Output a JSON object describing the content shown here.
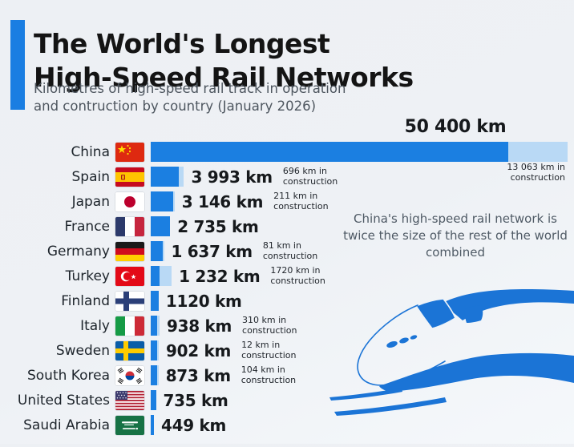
{
  "header": {
    "title": "The World's Longest High-Speed Rail Networks",
    "title_line1": "The World's Longest",
    "title_line2": "High-Speed Rail Networks",
    "subtitle": "Kilometres of high-speed rail track in operation and contruction by country (January 2026)",
    "subtitle_line1": "Kilometres of high-speed rail track in operation",
    "subtitle_line2": "and contruction by country (January 2026)"
  },
  "annotation": "China's high-speed rail network is twice the size of the rest of the world combined",
  "colors": {
    "accent": "#1a7ee2",
    "bar_operation": "#1b7fe1",
    "bar_construction": "#b9d9f5",
    "background": "#eef1f5",
    "train_blue": "#1b74d6"
  },
  "chart_data": {
    "type": "bar",
    "orientation": "horizontal",
    "unit": "km",
    "title": "The World's Longest High-Speed Rail Networks",
    "xlabel": "",
    "ylabel": "",
    "legend": [
      "in operation",
      "in construction"
    ],
    "categories": [
      "China",
      "Spain",
      "Japan",
      "France",
      "Germany",
      "Turkey",
      "Finland",
      "Italy",
      "Sweden",
      "South Korea",
      "United States",
      "Saudi Arabia"
    ],
    "series": [
      {
        "name": "in operation",
        "values": [
          50400,
          3993,
          3146,
          2735,
          1637,
          1232,
          1120,
          938,
          902,
          873,
          735,
          449
        ]
      },
      {
        "name": "in construction",
        "values": [
          13063,
          696,
          211,
          null,
          81,
          1720,
          null,
          310,
          12,
          104,
          null,
          null
        ]
      }
    ],
    "rows": [
      {
        "country": "China",
        "flag": "cn",
        "operation_km": 50400,
        "operation_label": "50 400 km",
        "construction_km": 13063,
        "construction_note": "13 063 km in\nconstruction"
      },
      {
        "country": "Spain",
        "flag": "es",
        "operation_km": 3993,
        "operation_label": "3 993 km",
        "construction_km": 696,
        "construction_note": "696 km in\nconstruction"
      },
      {
        "country": "Japan",
        "flag": "jp",
        "operation_km": 3146,
        "operation_label": "3 146 km",
        "construction_km": 211,
        "construction_note": "211 km in\nconstruction"
      },
      {
        "country": "France",
        "flag": "fr",
        "operation_km": 2735,
        "operation_label": "2 735 km",
        "construction_km": null,
        "construction_note": ""
      },
      {
        "country": "Germany",
        "flag": "de",
        "operation_km": 1637,
        "operation_label": "1 637 km",
        "construction_km": 81,
        "construction_note": "81 km in\nconstruction"
      },
      {
        "country": "Turkey",
        "flag": "tr",
        "operation_km": 1232,
        "operation_label": "1 232 km",
        "construction_km": 1720,
        "construction_note": "1720 km in\nconstruction"
      },
      {
        "country": "Finland",
        "flag": "fi",
        "operation_km": 1120,
        "operation_label": "1120 km",
        "construction_km": null,
        "construction_note": ""
      },
      {
        "country": "Italy",
        "flag": "it",
        "operation_km": 938,
        "operation_label": "938 km",
        "construction_km": 310,
        "construction_note": "310 km in\nconstruction"
      },
      {
        "country": "Sweden",
        "flag": "se",
        "operation_km": 902,
        "operation_label": "902 km",
        "construction_km": 12,
        "construction_note": "12 km in\nconstruction"
      },
      {
        "country": "South Korea",
        "flag": "kr",
        "operation_km": 873,
        "operation_label": "873 km",
        "construction_km": 104,
        "construction_note": "104 km in\nconstruction"
      },
      {
        "country": "United States",
        "flag": "us",
        "operation_km": 735,
        "operation_label": "735 km",
        "construction_km": null,
        "construction_note": ""
      },
      {
        "country": "Saudi Arabia",
        "flag": "sa",
        "operation_km": 449,
        "operation_label": "449 km",
        "construction_km": null,
        "construction_note": ""
      }
    ]
  }
}
